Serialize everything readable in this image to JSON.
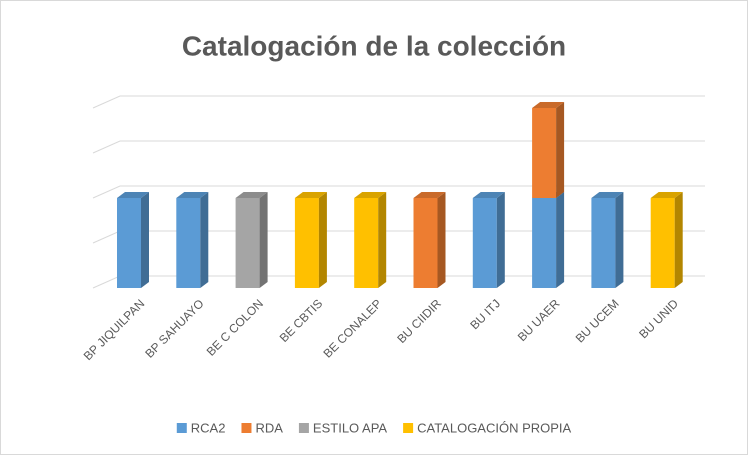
{
  "chart_data": {
    "type": "bar3d_stacked",
    "title": "Catalogación de la colección",
    "categories": [
      "BP JIQUILPAN",
      "BP SAHUAYO",
      "BE C COLON",
      "BE CBTIS",
      "BE CONALEP",
      "BU CIIDIR",
      "BU ITJ",
      "BU UAER",
      "BU UCEM",
      "BU UNID"
    ],
    "series": [
      {
        "name": "RCA2",
        "color": "#5b9bd5",
        "values": [
          1,
          1,
          0,
          0,
          0,
          0,
          1,
          1,
          1,
          0
        ]
      },
      {
        "name": "RDA",
        "color": "#ed7d31",
        "values": [
          0,
          0,
          0,
          0,
          0,
          1,
          0,
          1,
          0,
          0
        ]
      },
      {
        "name": "ESTILO APA",
        "color": "#a5a5a5",
        "values": [
          0,
          0,
          1,
          0,
          0,
          0,
          0,
          0,
          0,
          0
        ]
      },
      {
        "name": "CATALOGACIÓN PROPIA",
        "color": "#ffc000",
        "values": [
          0,
          0,
          0,
          1,
          1,
          0,
          0,
          0,
          0,
          1
        ]
      }
    ],
    "ylim": [
      0,
      2
    ],
    "yticks": [
      0,
      0.5,
      1,
      1.5,
      2
    ],
    "grid": true,
    "legend": "bottom"
  }
}
